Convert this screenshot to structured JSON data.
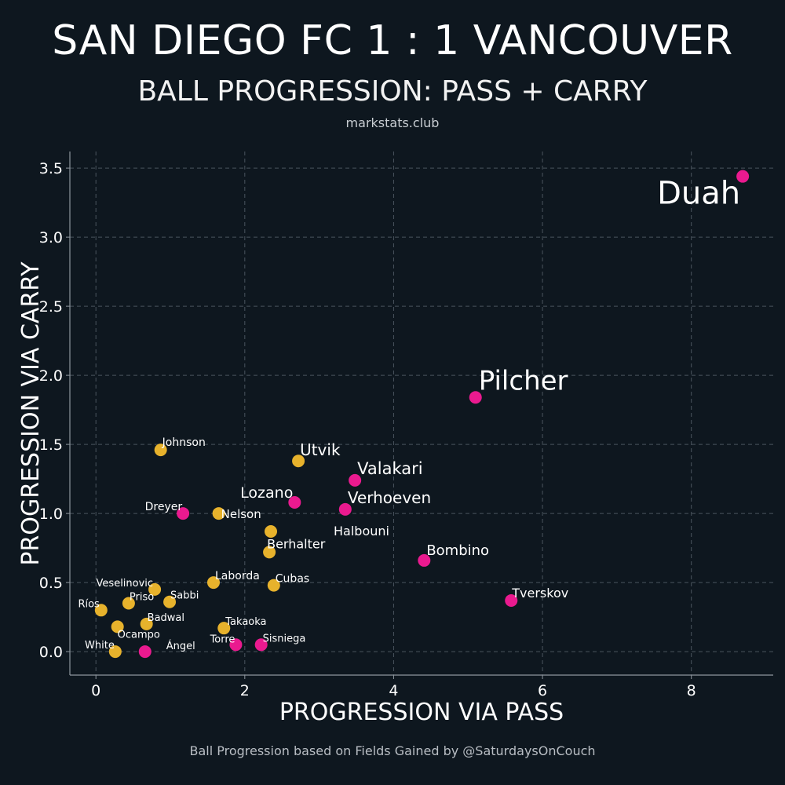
{
  "header": {
    "title": "SAN DIEGO FC 1 : 1 VANCOUVER",
    "subtitle": "BALL PROGRESSION: PASS + CARRY",
    "site": "markstats.club"
  },
  "footer": {
    "credit": "Ball Progression based on Fields Gained by @SaturdaysOnCouch"
  },
  "chart_data": {
    "type": "scatter",
    "xlabel": "PROGRESSION VIA PASS",
    "ylabel": "PROGRESSION VIA CARRY",
    "xlim": [
      -0.35,
      9.1
    ],
    "ylim": [
      -0.17,
      3.62
    ],
    "xticks": [
      "0",
      "2",
      "4",
      "6",
      "8"
    ],
    "yticks": [
      "0.0",
      "0.5",
      "1.0",
      "1.5",
      "2.0",
      "2.5",
      "3.0",
      "3.5"
    ],
    "grid": true,
    "colors": {
      "gold": "#e7b22c",
      "magenta": "#ea1a8f",
      "grid": "#4a545e",
      "axis": "#8e969e"
    },
    "series": [
      {
        "color": "gold",
        "points": [
          {
            "label": "Johnson",
            "x": 0.87,
            "y": 1.46
          },
          {
            "label": "Utvik",
            "x": 2.72,
            "y": 1.38
          },
          {
            "label": "Nelson",
            "x": 1.65,
            "y": 1.0
          },
          {
            "label": "Halbouni",
            "x": 2.35,
            "y": 0.87
          },
          {
            "label": "Berhalter",
            "x": 2.33,
            "y": 0.72
          },
          {
            "label": "Laborda",
            "x": 1.58,
            "y": 0.5
          },
          {
            "label": "Cubas",
            "x": 2.39,
            "y": 0.48
          },
          {
            "label": "Veselinovic",
            "x": 0.79,
            "y": 0.45
          },
          {
            "label": "Priso",
            "x": 0.44,
            "y": 0.35
          },
          {
            "label": "Sabbi",
            "x": 0.99,
            "y": 0.36
          },
          {
            "label": "Ríos",
            "x": 0.07,
            "y": 0.3
          },
          {
            "label": "Badwal",
            "x": 0.68,
            "y": 0.2
          },
          {
            "label": "Ocampo",
            "x": 0.29,
            "y": 0.18
          },
          {
            "label": "Takaoka",
            "x": 1.72,
            "y": 0.17
          },
          {
            "label": "White",
            "x": 0.26,
            "y": 0.0
          }
        ]
      },
      {
        "color": "magenta",
        "points": [
          {
            "label": "Duah",
            "x": 8.69,
            "y": 3.44
          },
          {
            "label": "Pilcher",
            "x": 5.1,
            "y": 1.84
          },
          {
            "label": "Valakari",
            "x": 3.48,
            "y": 1.24
          },
          {
            "label": "Lozano",
            "x": 2.67,
            "y": 1.08
          },
          {
            "label": "Verhoeven",
            "x": 3.35,
            "y": 1.03
          },
          {
            "label": "Dreyer",
            "x": 1.17,
            "y": 1.0
          },
          {
            "label": "Bombino",
            "x": 4.41,
            "y": 0.66
          },
          {
            "label": "Tverskov",
            "x": 5.58,
            "y": 0.37
          },
          {
            "label": "Torre",
            "x": 1.88,
            "y": 0.05
          },
          {
            "label": "Sisniega",
            "x": 2.22,
            "y": 0.05
          },
          {
            "label": "Ángel",
            "x": 0.66,
            "y": 0.0
          }
        ]
      }
    ]
  }
}
